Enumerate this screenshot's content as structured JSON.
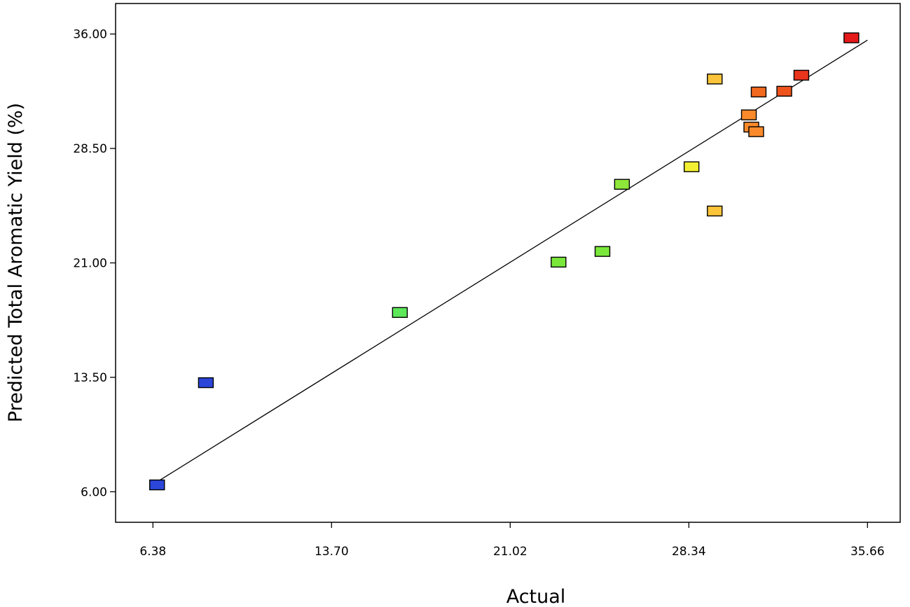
{
  "chart_data": {
    "type": "scatter",
    "xlabel": "Actual",
    "ylabel": "Predicted Total Aromatic Yield (%)",
    "xlim": [
      4.85,
      37.0
    ],
    "ylim": [
      4.0,
      38.0
    ],
    "x_ticks": [
      "6.38",
      "13.70",
      "21.02",
      "28.34",
      "35.66"
    ],
    "y_ticks": [
      "6.00",
      "13.50",
      "21.00",
      "28.50",
      "36.00"
    ],
    "grid": false,
    "fit_line": {
      "from": [
        6.6,
        6.7
      ],
      "to": [
        35.66,
        35.6
      ]
    },
    "points": [
      {
        "x": 6.55,
        "y": 6.45,
        "color": "#2b46d8"
      },
      {
        "x": 8.55,
        "y": 13.15,
        "color": "#2b46d8"
      },
      {
        "x": 16.5,
        "y": 17.75,
        "color": "#5de85a"
      },
      {
        "x": 23.0,
        "y": 21.05,
        "color": "#7ae83a"
      },
      {
        "x": 24.8,
        "y": 21.75,
        "color": "#7ae83a"
      },
      {
        "x": 25.6,
        "y": 26.15,
        "color": "#8ee83a"
      },
      {
        "x": 28.45,
        "y": 27.3,
        "color": "#f2ef32"
      },
      {
        "x": 29.4,
        "y": 24.4,
        "color": "#fbc43a"
      },
      {
        "x": 29.4,
        "y": 33.05,
        "color": "#fbc43a"
      },
      {
        "x": 30.8,
        "y": 30.7,
        "color": "#fb8a2a"
      },
      {
        "x": 30.9,
        "y": 29.9,
        "color": "#fb8a2a"
      },
      {
        "x": 31.1,
        "y": 29.6,
        "color": "#fb8a2a"
      },
      {
        "x": 31.2,
        "y": 32.2,
        "color": "#f26a1f"
      },
      {
        "x": 32.25,
        "y": 32.25,
        "color": "#ef531c"
      },
      {
        "x": 32.95,
        "y": 33.3,
        "color": "#e8351c"
      },
      {
        "x": 35.0,
        "y": 35.75,
        "color": "#e51a1a"
      }
    ]
  }
}
